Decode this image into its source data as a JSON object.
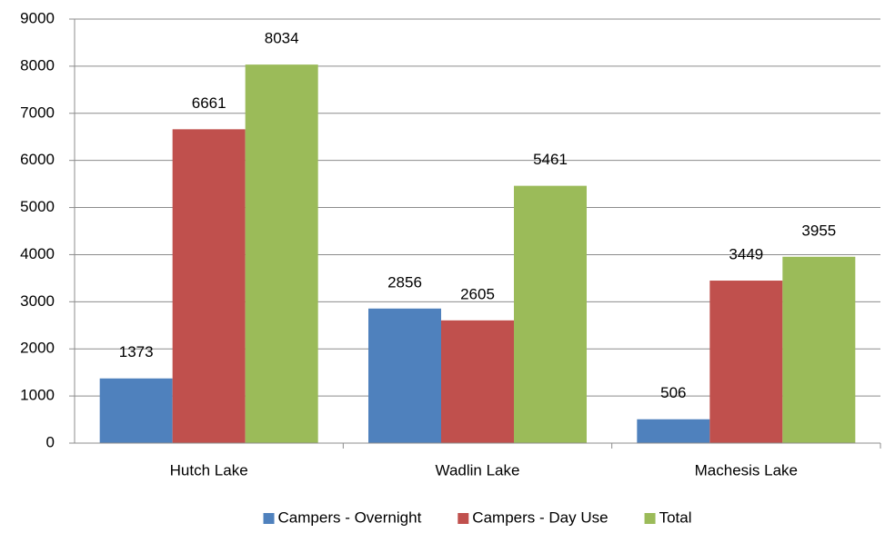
{
  "chart_data": {
    "type": "bar",
    "categories": [
      "Hutch Lake",
      "Wadlin Lake",
      "Machesis Lake"
    ],
    "series": [
      {
        "name": "Campers - Overnight",
        "color": "#4f81bd",
        "values": [
          1373,
          2856,
          506
        ]
      },
      {
        "name": "Campers - Day Use",
        "color": "#c0504d",
        "values": [
          6661,
          2605,
          3449
        ]
      },
      {
        "name": "Total",
        "color": "#9bbb59",
        "values": [
          8034,
          5461,
          3955
        ]
      }
    ],
    "ylim": [
      0,
      9000
    ],
    "yticks": [
      0,
      1000,
      2000,
      3000,
      4000,
      5000,
      6000,
      7000,
      8000,
      9000
    ],
    "grid": true,
    "legend": "bottom"
  }
}
